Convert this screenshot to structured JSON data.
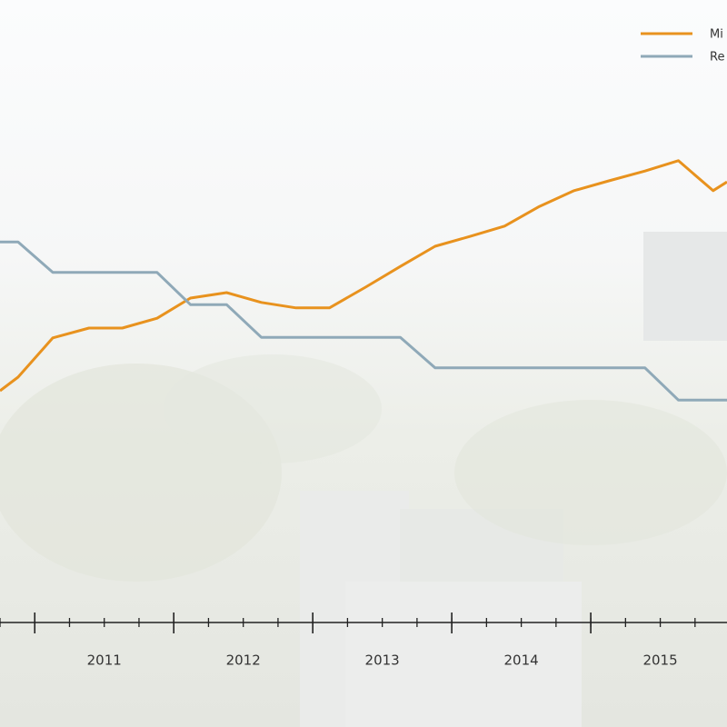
{
  "chart_data": {
    "type": "line",
    "x": [
      2010.75,
      2010.88,
      2011.13,
      2011.39,
      2011.63,
      2011.88,
      2012.12,
      2012.38,
      2012.63,
      2012.88,
      2013.12,
      2013.38,
      2013.63,
      2013.88,
      2014.13,
      2014.38,
      2014.63,
      2014.88,
      2015.13,
      2015.39,
      2015.63,
      2015.88,
      2015.98
    ],
    "series": [
      {
        "name": "Mi",
        "color": "#e8921e",
        "values": [
          42.5,
          45,
          52.2,
          54,
          54,
          55.8,
          59.5,
          60.5,
          58.7,
          57.7,
          57.7,
          61.5,
          65.3,
          69,
          70.8,
          72.7,
          76.3,
          79.2,
          81,
          82.8,
          84.7,
          79.2,
          80.8
        ]
      },
      {
        "name": "Re",
        "color": "#8fa9b8",
        "values": [
          69.8,
          69.8,
          64.2,
          64.2,
          64.2,
          64.2,
          58.3,
          58.3,
          52.3,
          52.3,
          52.3,
          52.3,
          52.3,
          46.7,
          46.7,
          46.7,
          46.7,
          46.7,
          46.7,
          46.7,
          40.8,
          40.8,
          40.8
        ]
      }
    ],
    "xlim": [
      2010.75,
      2015.98
    ],
    "ylim": [
      0,
      100
    ],
    "xticks": [
      {
        "value": 2011.5,
        "label": "2011"
      },
      {
        "value": 2012.5,
        "label": "2012"
      },
      {
        "value": 2013.5,
        "label": "2013"
      },
      {
        "value": 2014.5,
        "label": "2014"
      },
      {
        "value": 2015.5,
        "label": "2015"
      }
    ],
    "major_ticks": [
      2011,
      2012,
      2013,
      2014,
      2015
    ],
    "minor_tick_step": 0.25,
    "legend": "top-right"
  }
}
